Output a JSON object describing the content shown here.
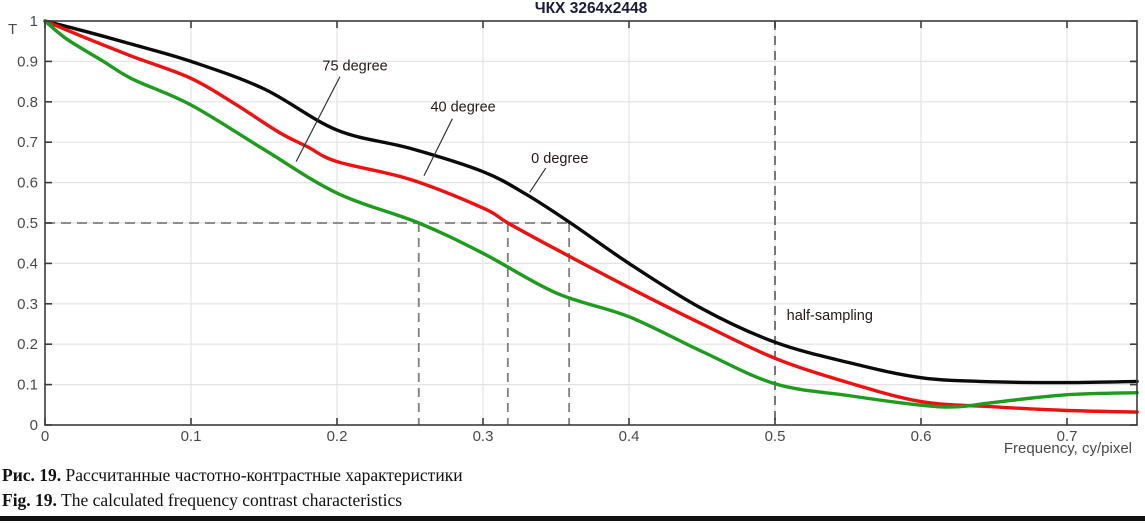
{
  "figure": {
    "caption_ru_label": "Рис. 19.",
    "caption_ru_text": "Рассчитанные частотно-контрастные характеристики",
    "caption_en_label": "Fig. 19.",
    "caption_en_text": "The calculated frequency contrast characteristics"
  },
  "chart_data": {
    "type": "line",
    "title": "ЧКХ 3264x2448",
    "xlabel": "Frequency, cy/pixel",
    "ylabel": "T",
    "xlim": [
      0,
      0.748
    ],
    "ylim": [
      0,
      1
    ],
    "grid": true,
    "legend_position": "inline-labels",
    "xticks": {
      "values": [
        0,
        0.1,
        0.2,
        0.3,
        0.4,
        0.5,
        0.6,
        0.7
      ],
      "labels": [
        "0",
        "0.1",
        "0.2",
        "0.3",
        "0.4",
        "0.5",
        "0.6",
        "0.7"
      ]
    },
    "yticks": {
      "values": [
        0,
        0.1,
        0.2,
        0.3,
        0.4,
        0.5,
        0.6,
        0.7,
        0.8,
        0.9,
        1
      ],
      "labels": [
        "0",
        "0.1",
        "0.2",
        "0.3",
        "0.4",
        "0.5",
        "0.6",
        "0.7",
        "0.8",
        "0.9",
        "1"
      ]
    },
    "series": [
      {
        "name": "0 degree",
        "color": "#0b0b0b",
        "points": [
          [
            0,
            1.0
          ],
          [
            0.03,
            0.972
          ],
          [
            0.06,
            0.942
          ],
          [
            0.1,
            0.9
          ],
          [
            0.15,
            0.832
          ],
          [
            0.2,
            0.73
          ],
          [
            0.25,
            0.685
          ],
          [
            0.3,
            0.627
          ],
          [
            0.33,
            0.57
          ],
          [
            0.36,
            0.5
          ],
          [
            0.4,
            0.4
          ],
          [
            0.45,
            0.288
          ],
          [
            0.5,
            0.205
          ],
          [
            0.55,
            0.155
          ],
          [
            0.6,
            0.117
          ],
          [
            0.65,
            0.107
          ],
          [
            0.7,
            0.105
          ],
          [
            0.748,
            0.108
          ]
        ]
      },
      {
        "name": "40 degree",
        "color": "#ee1111",
        "points": [
          [
            0,
            1.0
          ],
          [
            0.03,
            0.955
          ],
          [
            0.06,
            0.912
          ],
          [
            0.1,
            0.858
          ],
          [
            0.13,
            0.795
          ],
          [
            0.16,
            0.725
          ],
          [
            0.18,
            0.688
          ],
          [
            0.2,
            0.652
          ],
          [
            0.25,
            0.608
          ],
          [
            0.3,
            0.537
          ],
          [
            0.317,
            0.5
          ],
          [
            0.35,
            0.435
          ],
          [
            0.4,
            0.34
          ],
          [
            0.45,
            0.25
          ],
          [
            0.5,
            0.165
          ],
          [
            0.55,
            0.105
          ],
          [
            0.6,
            0.058
          ],
          [
            0.65,
            0.045
          ],
          [
            0.7,
            0.036
          ],
          [
            0.748,
            0.032
          ]
        ]
      },
      {
        "name": "75 degree",
        "color": "#1f9b1f",
        "points": [
          [
            0,
            1.0
          ],
          [
            0.015,
            0.955
          ],
          [
            0.04,
            0.9
          ],
          [
            0.06,
            0.856
          ],
          [
            0.1,
            0.792
          ],
          [
            0.15,
            0.682
          ],
          [
            0.2,
            0.574
          ],
          [
            0.256,
            0.5
          ],
          [
            0.3,
            0.425
          ],
          [
            0.35,
            0.327
          ],
          [
            0.4,
            0.268
          ],
          [
            0.45,
            0.182
          ],
          [
            0.5,
            0.102
          ],
          [
            0.55,
            0.073
          ],
          [
            0.6,
            0.049
          ],
          [
            0.625,
            0.045
          ],
          [
            0.65,
            0.056
          ],
          [
            0.7,
            0.075
          ],
          [
            0.748,
            0.08
          ]
        ]
      }
    ],
    "annotations": {
      "mtf50_level": 0.5,
      "mtf50_line_x_end": 0.359,
      "mtf50_crossings": [
        0.256,
        0.317,
        0.359
      ],
      "half_sampling": {
        "x": 0.5,
        "label": "half-sampling",
        "label_fx": 0.508,
        "label_fy": 0.26
      },
      "curve_labels": [
        {
          "text": "75 degree",
          "fx": 0.19,
          "fy": 0.878,
          "leader": [
            [
              0.202,
              0.862
            ],
            [
              0.172,
              0.652
            ]
          ]
        },
        {
          "text": "40 degree",
          "fx": 0.264,
          "fy": 0.776,
          "leader": [
            [
              0.279,
              0.758
            ],
            [
              0.2596,
              0.617
            ]
          ]
        },
        {
          "text": "0 degree",
          "fx": 0.333,
          "fy": 0.648,
          "leader": [
            [
              0.343,
              0.636
            ],
            [
              0.332,
              0.576
            ]
          ]
        }
      ]
    },
    "colors": {
      "axis": "#3c3c3c",
      "grid": "#e4e4e4",
      "dashed": "#7f7f7f",
      "tick_text": "#4a4a4a",
      "title_text": "#1a1a3c",
      "annotation_text": "#241818",
      "leader_line": "#333333"
    }
  }
}
